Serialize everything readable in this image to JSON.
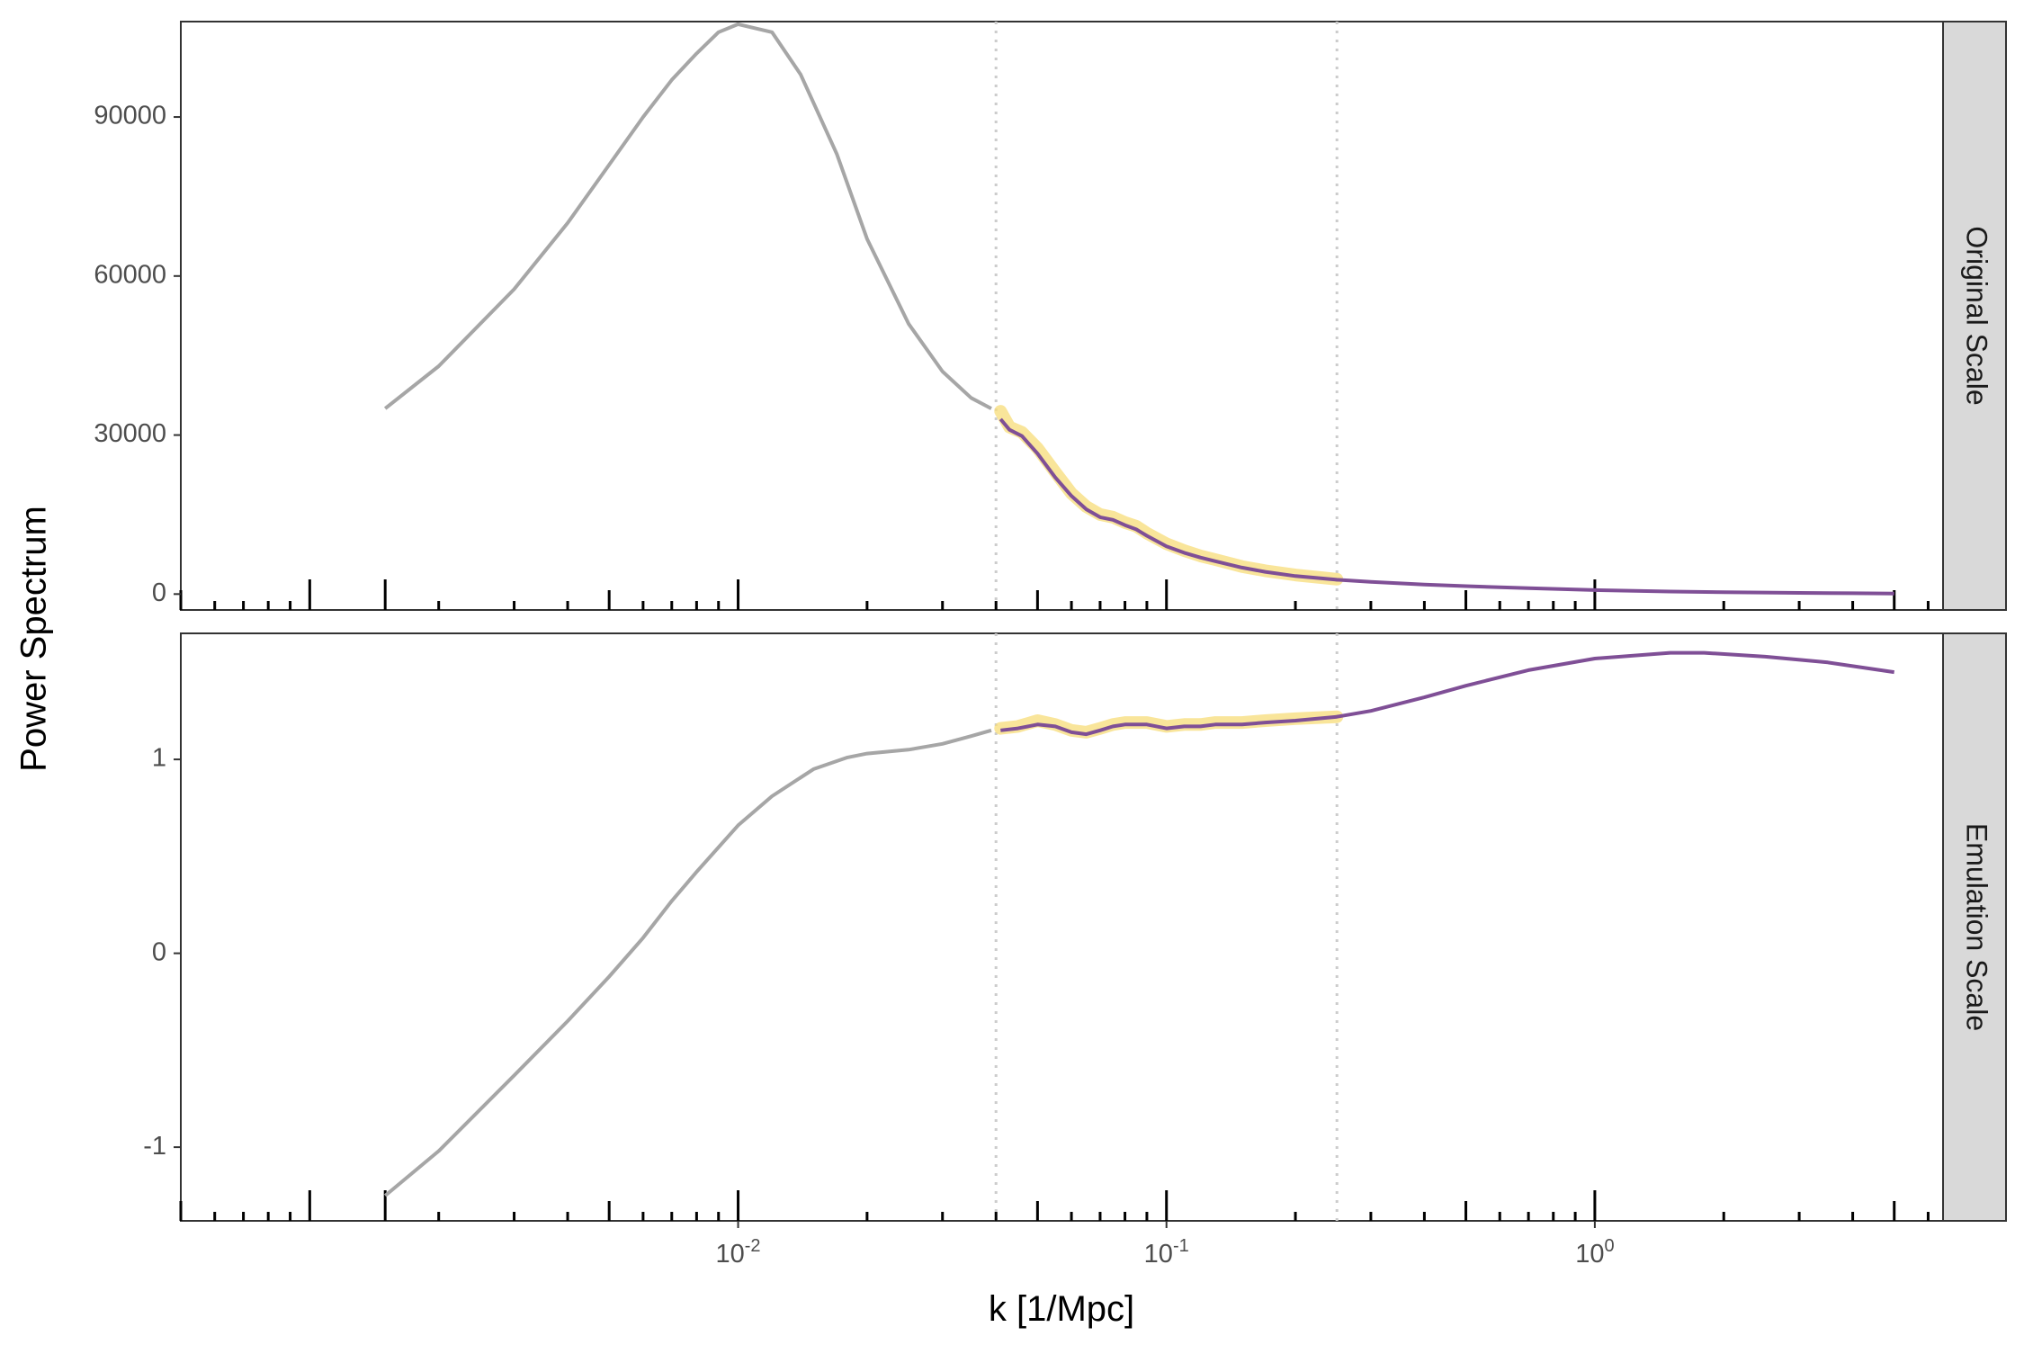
{
  "chart_data": {
    "type": "line",
    "xlabel": "k [1/Mpc]",
    "ylabel": "Power Spectrum",
    "x_scale": "log10",
    "x_ticks": [
      {
        "value": 0.01,
        "base": "10",
        "exp": "-2"
      },
      {
        "value": 0.1,
        "base": "10",
        "exp": "-1"
      },
      {
        "value": 1,
        "base": "10",
        "exp": "0"
      }
    ],
    "xlim": [
      0.0005,
      6.5
    ],
    "vlines": [
      0.04,
      0.25
    ],
    "grid": false,
    "colors": {
      "reference": "#a6a6a6",
      "emulated": "#7f4f96",
      "samples": "#f7dc78",
      "vline": "#cccccc",
      "strip": "#d9d9d9"
    },
    "panels": [
      {
        "strip": "Original Scale",
        "ylim": [
          -3000,
          108000
        ],
        "yticks": [
          "0",
          "30000",
          "60000",
          "90000"
        ],
        "ytick_values": [
          0,
          30000,
          60000,
          90000
        ],
        "series": [
          {
            "role": "reference",
            "x": [
              0.0015,
              0.002,
              0.003,
              0.004,
              0.005,
              0.006,
              0.007,
              0.008,
              0.009,
              0.01,
              0.012,
              0.014,
              0.017,
              0.02,
              0.025,
              0.03,
              0.035,
              0.039
            ],
            "y": [
              35000,
              43000,
              57500,
              70000,
              81000,
              90000,
              97000,
              102000,
              106000,
              107500,
              106000,
              98000,
              83000,
              67000,
              51000,
              42000,
              37000,
              35000
            ]
          },
          {
            "role": "samples",
            "x": [
              0.041,
              0.043,
              0.046,
              0.05,
              0.055,
              0.06,
              0.065,
              0.07,
              0.075,
              0.08,
              0.085,
              0.09,
              0.1,
              0.11,
              0.12,
              0.13,
              0.15,
              0.17,
              0.2,
              0.25
            ],
            "y": [
              34500,
              31500,
              30500,
              27500,
              23000,
              19000,
              16500,
              15000,
              14500,
              13500,
              12800,
              11500,
              9500,
              8200,
              7200,
              6500,
              5200,
              4400,
              3600,
              2800
            ]
          },
          {
            "role": "emulated",
            "x": [
              0.041,
              0.043,
              0.046,
              0.05,
              0.055,
              0.06,
              0.065,
              0.07,
              0.075,
              0.08,
              0.085,
              0.09,
              0.1,
              0.11,
              0.12,
              0.13,
              0.15,
              0.17,
              0.2,
              0.25,
              0.3,
              0.4,
              0.5,
              0.7,
              1,
              1.5,
              2,
              3,
              4,
              5
            ],
            "y": [
              33000,
              31000,
              29800,
              26500,
              22000,
              18500,
              16000,
              14500,
              14000,
              13000,
              12200,
              11000,
              9000,
              7800,
              6900,
              6200,
              5000,
              4200,
              3400,
              2700,
              2300,
              1800,
              1500,
              1100,
              750,
              480,
              350,
              220,
              150,
              100
            ]
          }
        ]
      },
      {
        "strip": "Emulation Scale",
        "ylim": [
          -1.38,
          1.65
        ],
        "yticks": [
          "-1",
          "0",
          "1"
        ],
        "ytick_values": [
          -1,
          0,
          1
        ],
        "series": [
          {
            "role": "reference",
            "x": [
              0.0015,
              0.002,
              0.003,
              0.004,
              0.005,
              0.006,
              0.007,
              0.008,
              0.01,
              0.012,
              0.015,
              0.018,
              0.02,
              0.025,
              0.03,
              0.035,
              0.039
            ],
            "y": [
              -1.25,
              -1.02,
              -0.63,
              -0.35,
              -0.12,
              0.08,
              0.27,
              0.42,
              0.66,
              0.81,
              0.95,
              1.01,
              1.03,
              1.05,
              1.08,
              1.12,
              1.15
            ]
          },
          {
            "role": "samples",
            "x": [
              0.041,
              0.045,
              0.05,
              0.055,
              0.06,
              0.065,
              0.07,
              0.075,
              0.08,
              0.09,
              0.1,
              0.11,
              0.12,
              0.13,
              0.15,
              0.17,
              0.2,
              0.25
            ],
            "y": [
              1.16,
              1.17,
              1.2,
              1.18,
              1.15,
              1.14,
              1.16,
              1.18,
              1.19,
              1.19,
              1.17,
              1.18,
              1.18,
              1.19,
              1.19,
              1.2,
              1.21,
              1.22
            ]
          },
          {
            "role": "emulated",
            "x": [
              0.041,
              0.045,
              0.05,
              0.055,
              0.06,
              0.065,
              0.07,
              0.075,
              0.08,
              0.09,
              0.1,
              0.11,
              0.12,
              0.13,
              0.15,
              0.17,
              0.2,
              0.25,
              0.3,
              0.4,
              0.5,
              0.7,
              1,
              1.5,
              1.8,
              2.5,
              3.5,
              5
            ],
            "y": [
              1.15,
              1.16,
              1.18,
              1.17,
              1.14,
              1.13,
              1.15,
              1.17,
              1.18,
              1.18,
              1.16,
              1.17,
              1.17,
              1.18,
              1.18,
              1.19,
              1.2,
              1.22,
              1.25,
              1.32,
              1.38,
              1.46,
              1.52,
              1.55,
              1.55,
              1.53,
              1.5,
              1.45
            ]
          }
        ]
      }
    ]
  }
}
